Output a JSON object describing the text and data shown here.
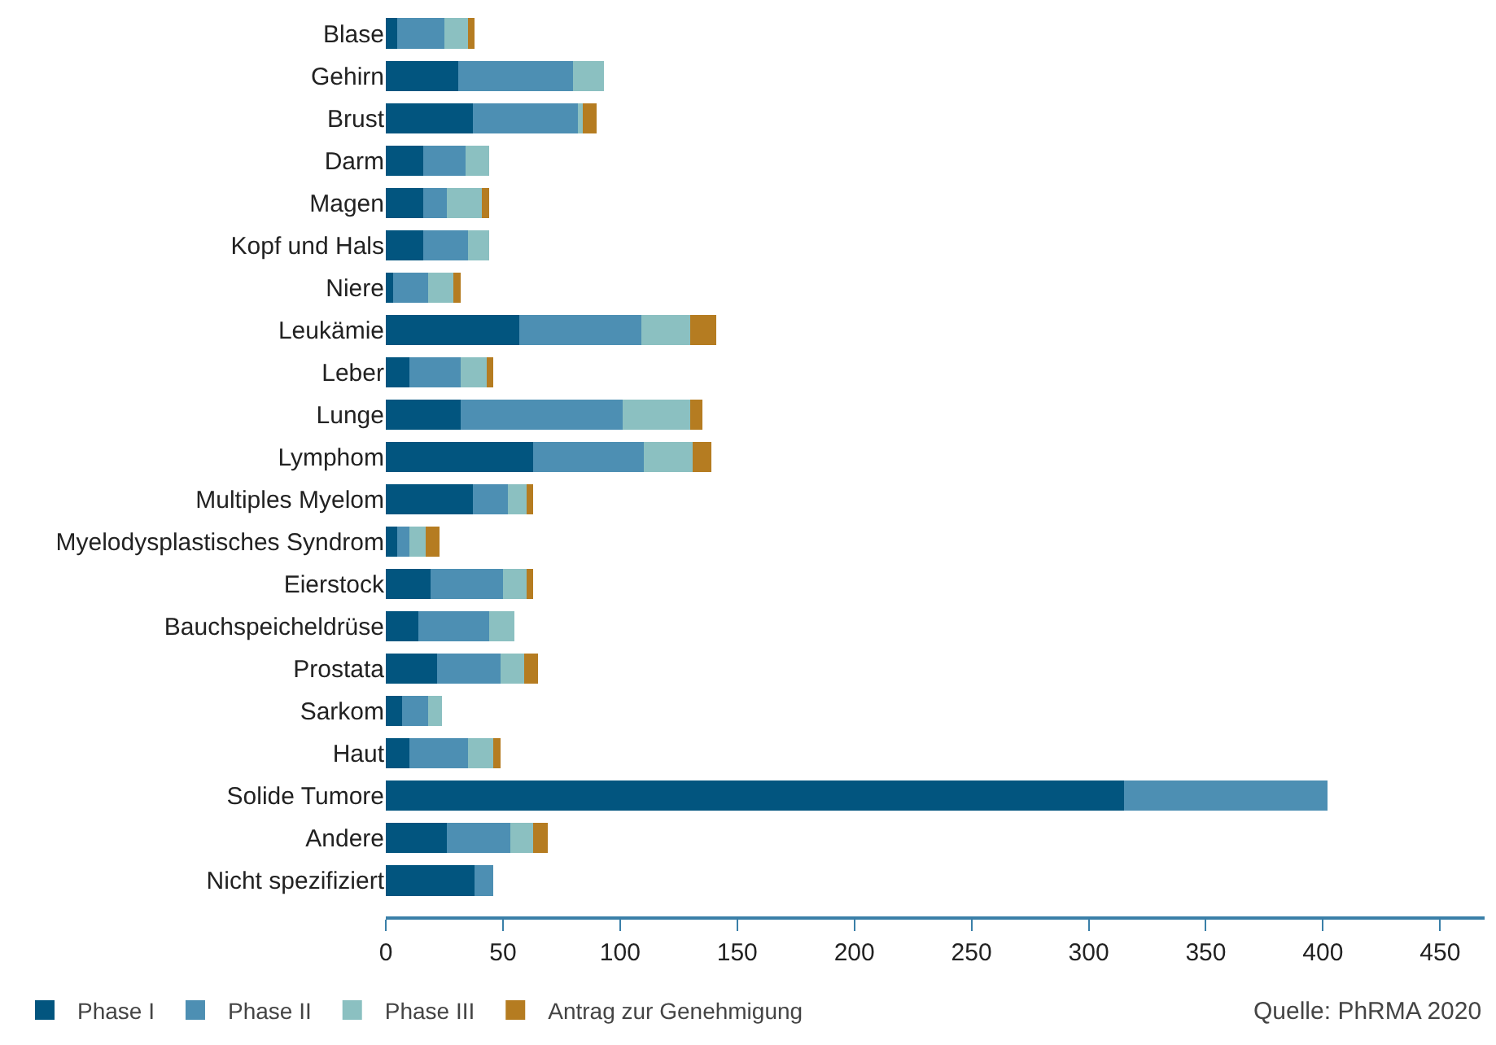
{
  "chart_data": {
    "type": "bar",
    "orientation": "horizontal",
    "stacked": true,
    "categories": [
      "Blase",
      "Gehirn",
      "Brust",
      "Darm",
      "Magen",
      "Kopf und Hals",
      "Niere",
      "Leukämie",
      "Leber",
      "Lunge",
      "Lymphom",
      "Multiples Myelom",
      "Myelodysplastisches Syndrom",
      "Eierstock",
      "Bauchspeicheldrüse",
      "Prostata",
      "Sarkom",
      "Haut",
      "Solide Tumore",
      "Andere",
      "Nicht spezifiziert"
    ],
    "series": [
      {
        "name": "Phase I",
        "color": "#02557f",
        "values": [
          5,
          31,
          37,
          16,
          16,
          16,
          3,
          57,
          10,
          32,
          63,
          37,
          5,
          19,
          14,
          22,
          7,
          10,
          315,
          26,
          38
        ]
      },
      {
        "name": "Phase II",
        "color": "#4d8fb3",
        "values": [
          20,
          49,
          45,
          18,
          10,
          19,
          15,
          52,
          22,
          69,
          47,
          15,
          5,
          31,
          30,
          27,
          11,
          25,
          87,
          27,
          8
        ]
      },
      {
        "name": "Phase III",
        "color": "#8bc0c1",
        "values": [
          10,
          13,
          2,
          10,
          15,
          9,
          11,
          21,
          11,
          29,
          21,
          8,
          7,
          10,
          11,
          10,
          6,
          11,
          null,
          10,
          null
        ]
      },
      {
        "name": "Antrag zur Genehmigung",
        "color": "#b57c21",
        "values": [
          3,
          null,
          6,
          null,
          3,
          null,
          3,
          11,
          3,
          5,
          8,
          3,
          6,
          3,
          null,
          6,
          null,
          3,
          null,
          6,
          null
        ]
      }
    ],
    "xlim": [
      0,
      469
    ],
    "xticks": [
      0,
      50,
      100,
      150,
      200,
      250,
      300,
      350,
      400,
      450
    ],
    "legend": "bottom",
    "annotations": [
      "Quelle: PhRMA 2020"
    ]
  }
}
